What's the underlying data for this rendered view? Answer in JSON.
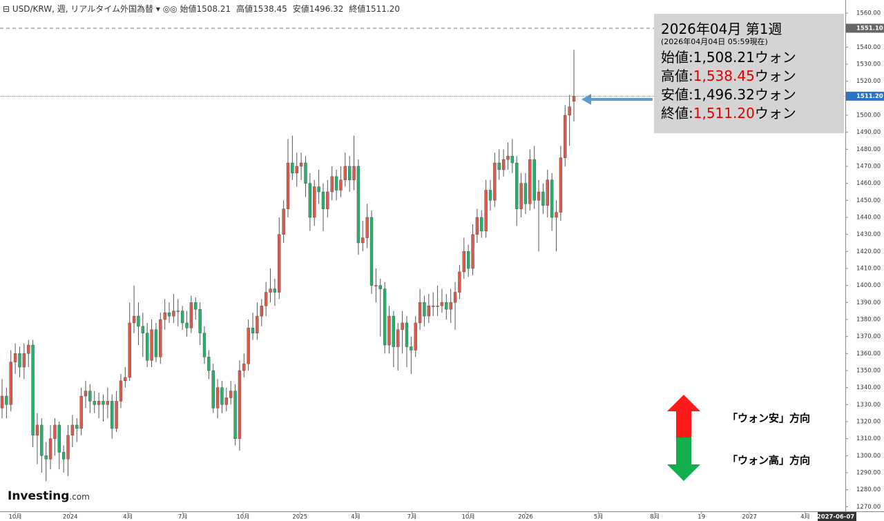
{
  "header": {
    "symbol": "USD/KRW, 週, リアルタイム外国為替",
    "ohlc": [
      {
        "label": "始値",
        "value": "1508.21"
      },
      {
        "label": "高値",
        "value": "1538.45"
      },
      {
        "label": "安値",
        "value": "1496.32"
      },
      {
        "label": "終値",
        "value": "1511.20"
      }
    ]
  },
  "info_box": {
    "title": "2026年04月 第1週",
    "time": "(2026年04月04日 05:59現在)",
    "rows": [
      {
        "label": "始値:",
        "value": "1,508.21",
        "unit": "ウォン",
        "color": "#000000"
      },
      {
        "label": "高値:",
        "value": "1,538.45",
        "unit": "ウォン",
        "color": "#e00000"
      },
      {
        "label": "安値:",
        "value": "1,496.32",
        "unit": "ウォン",
        "color": "#000000"
      },
      {
        "label": "終値:",
        "value": "1,511.20",
        "unit": "ウォン",
        "color": "#e00000"
      }
    ]
  },
  "legend": {
    "up": "「ウォン安」方向",
    "down": "「ウォン高」方向"
  },
  "logo": "Investing",
  "logo_suffix": ".com",
  "chart_data": {
    "type": "candlestick",
    "up_color": "#e0584a",
    "down_color": "#22b26a",
    "wick_color": "#555555",
    "xlim": [
      -0.47,
      191.7
    ],
    "xticks": [
      {
        "value": 3,
        "label": "10月"
      },
      {
        "value": 15.5,
        "label": "2024"
      },
      {
        "value": 28.6,
        "label": "4月"
      },
      {
        "value": 41.1,
        "label": "7月"
      },
      {
        "value": 54.8,
        "label": "10月"
      },
      {
        "value": 67.7,
        "label": "2025"
      },
      {
        "value": 80.4,
        "label": "4月"
      },
      {
        "value": 93.2,
        "label": "7月"
      },
      {
        "value": 106,
        "label": "10月"
      },
      {
        "value": 119,
        "label": "2026"
      },
      {
        "value": 135.6,
        "label": "5月"
      },
      {
        "value": 148.4,
        "label": "8月"
      },
      {
        "value": 159,
        "label": "19"
      },
      {
        "value": 169.9,
        "label": "2027"
      },
      {
        "value": 182.6,
        "label": "4月"
      },
      {
        "value": 189.5,
        "label": "2027-06-07"
      }
    ],
    "ylim": [
      1267.3,
      1567.7
    ],
    "yticks": [
      {
        "value": 1270,
        "label": "1270.00"
      },
      {
        "value": 1280,
        "label": "1280.00"
      },
      {
        "value": 1290,
        "label": "1290.00"
      },
      {
        "value": 1300,
        "label": "1300.00"
      },
      {
        "value": 1310,
        "label": "1310.00"
      },
      {
        "value": 1320,
        "label": "1320.00"
      },
      {
        "value": 1330,
        "label": "1330.00"
      },
      {
        "value": 1340,
        "label": "1340.00"
      },
      {
        "value": 1350,
        "label": "1350.00"
      },
      {
        "value": 1360,
        "label": "1360.00"
      },
      {
        "value": 1370,
        "label": "1370.00"
      },
      {
        "value": 1380,
        "label": "1380.00"
      },
      {
        "value": 1390,
        "label": "1390.00"
      },
      {
        "value": 1400,
        "label": "1400.00"
      },
      {
        "value": 1410,
        "label": "1410.00"
      },
      {
        "value": 1420,
        "label": "1420.00"
      },
      {
        "value": 1430,
        "label": "1430.00"
      },
      {
        "value": 1440,
        "label": "1440.00"
      },
      {
        "value": 1450,
        "label": "1450.00"
      },
      {
        "value": 1460,
        "label": "1460.00"
      },
      {
        "value": 1470,
        "label": "1470.00"
      },
      {
        "value": 1480,
        "label": "1480.00"
      },
      {
        "value": 1490,
        "label": "1490.00"
      },
      {
        "value": 1500,
        "label": "1500.00"
      },
      {
        "value": 1510,
        "label": "1510.00"
      },
      {
        "value": 1520,
        "label": "1520.00"
      },
      {
        "value": 1530,
        "label": "1530.00"
      },
      {
        "value": 1540,
        "label": "1540.00"
      },
      {
        "value": 1550,
        "label": "1550.00"
      },
      {
        "value": 1560,
        "label": "1560.00"
      }
    ],
    "reference_lines": [
      {
        "value": 1551.1,
        "label": "1551.10",
        "color": "#666666",
        "style": "dashed"
      },
      {
        "value": 1511.2,
        "label": "1511.20",
        "color": "#2a74c8",
        "style": "dotted"
      }
    ],
    "ohlc": [
      [
        1328,
        1345,
        1322,
        1335
      ],
      [
        1335,
        1340,
        1322,
        1330
      ],
      [
        1330,
        1362,
        1326,
        1355
      ],
      [
        1355,
        1366,
        1348,
        1360
      ],
      [
        1360,
        1364,
        1346,
        1352
      ],
      [
        1352,
        1366,
        1345,
        1360
      ],
      [
        1360,
        1368,
        1352,
        1365
      ],
      [
        1365,
        1368,
        1305,
        1312
      ],
      [
        1312,
        1325,
        1295,
        1318
      ],
      [
        1318,
        1322,
        1290,
        1300
      ],
      [
        1300,
        1308,
        1285,
        1298
      ],
      [
        1298,
        1318,
        1292,
        1310
      ],
      [
        1310,
        1322,
        1300,
        1318
      ],
      [
        1318,
        1320,
        1292,
        1302
      ],
      [
        1302,
        1306,
        1290,
        1298
      ],
      [
        1298,
        1318,
        1288,
        1312
      ],
      [
        1312,
        1324,
        1305,
        1318
      ],
      [
        1318,
        1322,
        1308,
        1316
      ],
      [
        1316,
        1340,
        1312,
        1335
      ],
      [
        1335,
        1344,
        1328,
        1338
      ],
      [
        1338,
        1342,
        1325,
        1332
      ],
      [
        1332,
        1338,
        1325,
        1330
      ],
      [
        1330,
        1337,
        1322,
        1332
      ],
      [
        1332,
        1336,
        1320,
        1330
      ],
      [
        1330,
        1340,
        1322,
        1332
      ],
      [
        1332,
        1336,
        1310,
        1316
      ],
      [
        1316,
        1338,
        1314,
        1332
      ],
      [
        1332,
        1348,
        1328,
        1344
      ],
      [
        1344,
        1352,
        1340,
        1346
      ],
      [
        1346,
        1390,
        1344,
        1378
      ],
      [
        1378,
        1400,
        1372,
        1382
      ],
      [
        1382,
        1390,
        1365,
        1376
      ],
      [
        1376,
        1384,
        1358,
        1372
      ],
      [
        1372,
        1378,
        1352,
        1356
      ],
      [
        1356,
        1380,
        1352,
        1374
      ],
      [
        1374,
        1378,
        1355,
        1358
      ],
      [
        1358,
        1384,
        1354,
        1380
      ],
      [
        1380,
        1392,
        1374,
        1384
      ],
      [
        1384,
        1390,
        1378,
        1382
      ],
      [
        1382,
        1395,
        1378,
        1385
      ],
      [
        1385,
        1392,
        1376,
        1385
      ],
      [
        1385,
        1388,
        1374,
        1378
      ],
      [
        1378,
        1385,
        1370,
        1375
      ],
      [
        1375,
        1394,
        1372,
        1390
      ],
      [
        1390,
        1393,
        1380,
        1386
      ],
      [
        1386,
        1390,
        1365,
        1372
      ],
      [
        1372,
        1376,
        1354,
        1358
      ],
      [
        1358,
        1362,
        1345,
        1350
      ],
      [
        1350,
        1354,
        1325,
        1328
      ],
      [
        1328,
        1345,
        1322,
        1340
      ],
      [
        1340,
        1344,
        1325,
        1330
      ],
      [
        1330,
        1340,
        1326,
        1334
      ],
      [
        1334,
        1344,
        1330,
        1338
      ],
      [
        1338,
        1342,
        1306,
        1310
      ],
      [
        1310,
        1356,
        1303,
        1350
      ],
      [
        1350,
        1360,
        1346,
        1354
      ],
      [
        1354,
        1380,
        1350,
        1375
      ],
      [
        1375,
        1384,
        1368,
        1372
      ],
      [
        1372,
        1390,
        1368,
        1382
      ],
      [
        1382,
        1392,
        1376,
        1388
      ],
      [
        1388,
        1402,
        1382,
        1396
      ],
      [
        1396,
        1410,
        1390,
        1398
      ],
      [
        1398,
        1404,
        1388,
        1396
      ],
      [
        1396,
        1440,
        1392,
        1430
      ],
      [
        1430,
        1450,
        1425,
        1445
      ],
      [
        1445,
        1486,
        1440,
        1472
      ],
      [
        1472,
        1488,
        1462,
        1466
      ],
      [
        1466,
        1478,
        1458,
        1470
      ],
      [
        1470,
        1478,
        1462,
        1472
      ],
      [
        1472,
        1476,
        1452,
        1460
      ],
      [
        1460,
        1466,
        1432,
        1440
      ],
      [
        1440,
        1462,
        1435,
        1458
      ],
      [
        1458,
        1468,
        1448,
        1455
      ],
      [
        1455,
        1460,
        1432,
        1445
      ],
      [
        1445,
        1462,
        1440,
        1455
      ],
      [
        1455,
        1470,
        1450,
        1464
      ],
      [
        1464,
        1468,
        1450,
        1456
      ],
      [
        1456,
        1470,
        1452,
        1462
      ],
      [
        1462,
        1478,
        1458,
        1470
      ],
      [
        1470,
        1476,
        1455,
        1462
      ],
      [
        1462,
        1488,
        1456,
        1470
      ],
      [
        1470,
        1474,
        1418,
        1425
      ],
      [
        1425,
        1438,
        1420,
        1428
      ],
      [
        1428,
        1448,
        1422,
        1440
      ],
      [
        1440,
        1444,
        1395,
        1400
      ],
      [
        1400,
        1410,
        1390,
        1400
      ],
      [
        1400,
        1404,
        1370,
        1398
      ],
      [
        1398,
        1402,
        1360,
        1365
      ],
      [
        1365,
        1388,
        1360,
        1382
      ],
      [
        1382,
        1385,
        1352,
        1364
      ],
      [
        1364,
        1378,
        1350,
        1374
      ],
      [
        1374,
        1385,
        1360,
        1378
      ],
      [
        1378,
        1382,
        1352,
        1364
      ],
      [
        1364,
        1370,
        1348,
        1362
      ],
      [
        1362,
        1382,
        1358,
        1378
      ],
      [
        1378,
        1398,
        1374,
        1390
      ],
      [
        1390,
        1394,
        1376,
        1382
      ],
      [
        1382,
        1395,
        1378,
        1388
      ],
      [
        1388,
        1396,
        1382,
        1388
      ],
      [
        1388,
        1400,
        1382,
        1388
      ],
      [
        1388,
        1398,
        1384,
        1390
      ],
      [
        1390,
        1395,
        1380,
        1386
      ],
      [
        1386,
        1398,
        1378,
        1390
      ],
      [
        1390,
        1402,
        1374,
        1396
      ],
      [
        1396,
        1412,
        1392,
        1408
      ],
      [
        1408,
        1428,
        1404,
        1420
      ],
      [
        1420,
        1424,
        1405,
        1410
      ],
      [
        1410,
        1436,
        1406,
        1430
      ],
      [
        1430,
        1445,
        1425,
        1440
      ],
      [
        1440,
        1444,
        1428,
        1432
      ],
      [
        1432,
        1462,
        1428,
        1456
      ],
      [
        1456,
        1462,
        1444,
        1450
      ],
      [
        1450,
        1478,
        1446,
        1472
      ],
      [
        1472,
        1480,
        1462,
        1468
      ],
      [
        1468,
        1480,
        1464,
        1474
      ],
      [
        1474,
        1484,
        1468,
        1476
      ],
      [
        1476,
        1486,
        1466,
        1472
      ],
      [
        1472,
        1476,
        1435,
        1445
      ],
      [
        1445,
        1466,
        1440,
        1460
      ],
      [
        1460,
        1466,
        1442,
        1448
      ],
      [
        1448,
        1480,
        1444,
        1474
      ],
      [
        1474,
        1482,
        1445,
        1450
      ],
      [
        1450,
        1462,
        1420,
        1455
      ],
      [
        1455,
        1460,
        1442,
        1447
      ],
      [
        1447,
        1468,
        1440,
        1462
      ],
      [
        1462,
        1466,
        1432,
        1440
      ],
      [
        1440,
        1450,
        1420,
        1443
      ],
      [
        1443,
        1482,
        1438,
        1475
      ],
      [
        1475,
        1506,
        1470,
        1500
      ],
      [
        1500,
        1512,
        1482,
        1505
      ],
      [
        1508.21,
        1538.45,
        1496.32,
        1511.2
      ]
    ]
  }
}
